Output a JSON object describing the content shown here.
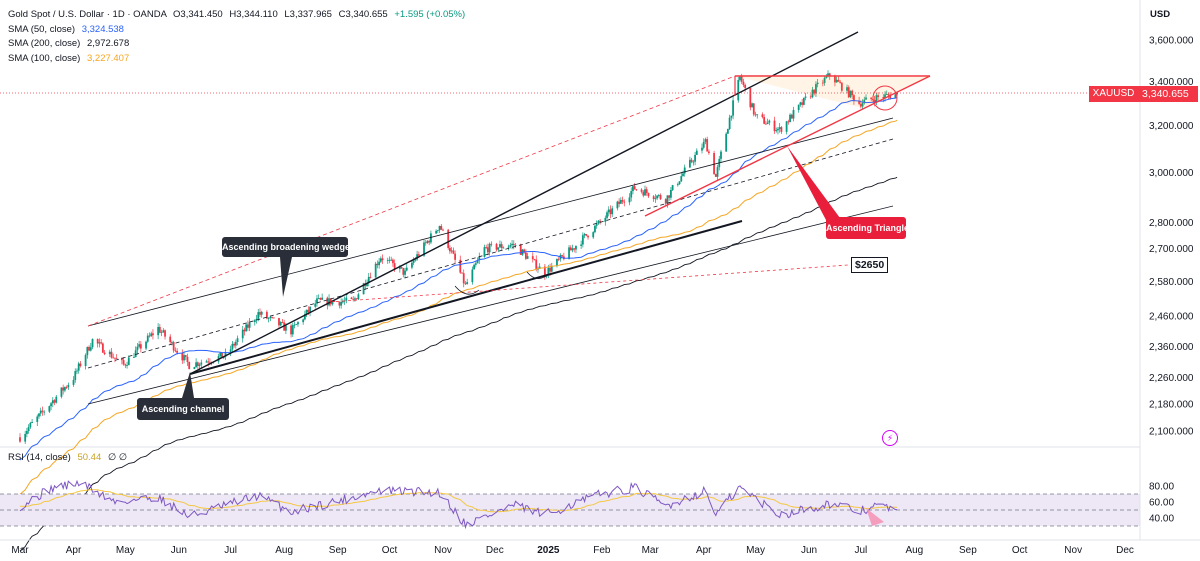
{
  "header": {
    "symbol_line": "Gold Spot / U.S. Dollar · 1D · OANDA",
    "open": "O3,341.450",
    "high": "H3,344.110",
    "low": "L3,337.965",
    "close": "C3,340.655",
    "change": "+1.595 (+0.05%)",
    "currency": "USD"
  },
  "indicators": {
    "sma50": {
      "label": "SMA (50, close)",
      "value": "3,324.538",
      "color": "#2962ff"
    },
    "sma200": {
      "label": "SMA (200, close)",
      "value": "2,972.678",
      "color": "#131722"
    },
    "sma100": {
      "label": "SMA (100, close)",
      "value": "3,227.407",
      "color": "#f5a623"
    },
    "rsi": {
      "label": "RSI (14, close)",
      "value": "50.44",
      "extra": "∅ ∅",
      "color": "#7e57c2"
    }
  },
  "last_price": {
    "symbol": "XAUUSD",
    "value": "3,340.655"
  },
  "annotations": {
    "wedge": "Ascending broadening wedge",
    "channel": "Ascending channel",
    "triangle": "Ascending Triangle",
    "level": "$2650"
  },
  "colors": {
    "up": "#089981",
    "down": "#f23645",
    "triangle": "#f23645",
    "rsi_band": "#ede7f6"
  },
  "chart_data": {
    "type": "line",
    "title": "Gold Spot / U.S. Dollar · 1D · OANDA",
    "x_ticks": [
      "Mar",
      "Apr",
      "May",
      "Jun",
      "Jul",
      "Aug",
      "Sep",
      "Oct",
      "Nov",
      "Dec",
      "2025",
      "Feb",
      "Mar",
      "Apr",
      "May",
      "Jun",
      "Jul",
      "Aug",
      "Sep",
      "Oct",
      "Nov",
      "Dec"
    ],
    "y_ticks": [
      "3,600.000",
      "3,400.000",
      "3,200.000",
      "3,000.000",
      "2,800.000",
      "2,700.000",
      "2,580.000",
      "2,460.000",
      "2,360.000",
      "2,260.000",
      "2,180.000",
      "2,100.000"
    ],
    "y_tick_values": [
      3600,
      3400,
      3200,
      3000,
      2800,
      2700,
      2580,
      2460,
      2360,
      2260,
      2180,
      2100
    ],
    "ylim": [
      2060,
      3700
    ],
    "y_scale": "log",
    "price_series": [
      {
        "date": "2024-03-01",
        "value": 2082
      },
      {
        "date": "2024-03-15",
        "value": 2160
      },
      {
        "date": "2024-04-01",
        "value": 2260
      },
      {
        "date": "2024-04-12",
        "value": 2380
      },
      {
        "date": "2024-04-30",
        "value": 2300
      },
      {
        "date": "2024-05-20",
        "value": 2420
      },
      {
        "date": "2024-06-07",
        "value": 2300
      },
      {
        "date": "2024-06-28",
        "value": 2330
      },
      {
        "date": "2024-07-17",
        "value": 2470
      },
      {
        "date": "2024-08-05",
        "value": 2410
      },
      {
        "date": "2024-08-20",
        "value": 2510
      },
      {
        "date": "2024-09-10",
        "value": 2510
      },
      {
        "date": "2024-09-26",
        "value": 2670
      },
      {
        "date": "2024-10-10",
        "value": 2610
      },
      {
        "date": "2024-10-30",
        "value": 2790
      },
      {
        "date": "2024-11-14",
        "value": 2565
      },
      {
        "date": "2024-11-25",
        "value": 2700
      },
      {
        "date": "2024-12-12",
        "value": 2715
      },
      {
        "date": "2024-12-30",
        "value": 2610
      },
      {
        "date": "2025-01-15",
        "value": 2700
      },
      {
        "date": "2025-01-31",
        "value": 2800
      },
      {
        "date": "2025-02-20",
        "value": 2935
      },
      {
        "date": "2025-03-10",
        "value": 2890
      },
      {
        "date": "2025-04-02",
        "value": 3130
      },
      {
        "date": "2025-04-08",
        "value": 2980
      },
      {
        "date": "2025-04-22",
        "value": 3420
      },
      {
        "date": "2025-05-01",
        "value": 3240
      },
      {
        "date": "2025-05-15",
        "value": 3180
      },
      {
        "date": "2025-06-05",
        "value": 3370
      },
      {
        "date": "2025-06-13",
        "value": 3430
      },
      {
        "date": "2025-06-30",
        "value": 3300
      },
      {
        "date": "2025-07-10",
        "value": 3325
      },
      {
        "date": "2025-07-22",
        "value": 3340.655
      }
    ],
    "rsi_ticks": [
      "80.00",
      "60.00",
      "40.00"
    ],
    "rsi_tick_values": [
      80,
      60,
      40
    ],
    "rsi_bands": [
      70,
      50,
      30
    ],
    "rsi_ylim": [
      25,
      88
    ],
    "rsi_series": [
      {
        "date": "2024-03-01",
        "value": 55
      },
      {
        "date": "2024-03-20",
        "value": 78
      },
      {
        "date": "2024-04-05",
        "value": 84
      },
      {
        "date": "2024-04-25",
        "value": 60
      },
      {
        "date": "2024-05-20",
        "value": 66
      },
      {
        "date": "2024-06-07",
        "value": 42
      },
      {
        "date": "2024-07-17",
        "value": 68
      },
      {
        "date": "2024-08-05",
        "value": 48
      },
      {
        "date": "2024-09-26",
        "value": 74
      },
      {
        "date": "2024-10-30",
        "value": 72
      },
      {
        "date": "2024-11-14",
        "value": 32
      },
      {
        "date": "2024-12-12",
        "value": 56
      },
      {
        "date": "2024-12-30",
        "value": 44
      },
      {
        "date": "2025-01-31",
        "value": 70
      },
      {
        "date": "2025-02-20",
        "value": 78
      },
      {
        "date": "2025-03-10",
        "value": 55
      },
      {
        "date": "2025-04-02",
        "value": 74
      },
      {
        "date": "2025-04-08",
        "value": 45
      },
      {
        "date": "2025-04-22",
        "value": 78
      },
      {
        "date": "2025-05-15",
        "value": 44
      },
      {
        "date": "2025-06-13",
        "value": 58
      },
      {
        "date": "2025-06-30",
        "value": 48
      },
      {
        "date": "2025-07-10",
        "value": 56
      },
      {
        "date": "2025-07-22",
        "value": 50.44
      }
    ]
  }
}
